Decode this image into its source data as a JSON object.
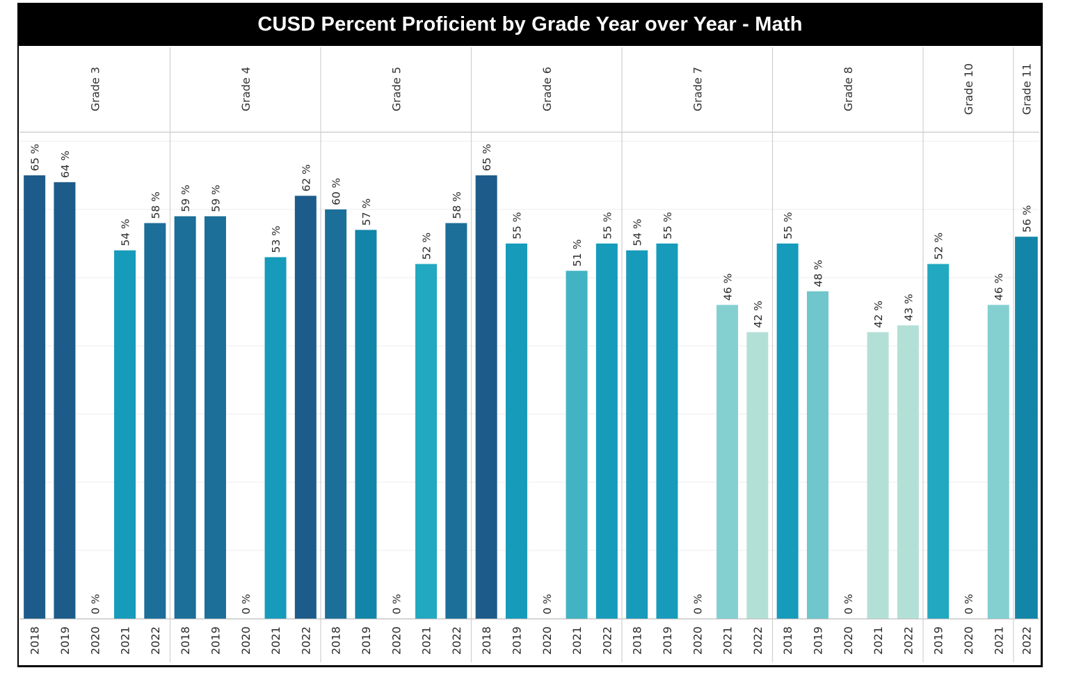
{
  "chart_data": {
    "type": "bar",
    "title": "CUSD Percent Proficient by Grade Year over Year -  Math",
    "xlabel": "",
    "ylabel": "",
    "ylim": [
      0,
      70
    ],
    "grid": true,
    "value_suffix": " %",
    "groups": [
      {
        "name": "Grade 3",
        "years": [
          "2018",
          "2019",
          "2020",
          "2021",
          "2022"
        ],
        "values": [
          65,
          64,
          0,
          54,
          58
        ]
      },
      {
        "name": "Grade 4",
        "years": [
          "2018",
          "2019",
          "2020",
          "2021",
          "2022"
        ],
        "values": [
          59,
          59,
          0,
          53,
          62
        ]
      },
      {
        "name": "Grade 5",
        "years": [
          "2018",
          "2019",
          "2020",
          "2021",
          "2022"
        ],
        "values": [
          60,
          57,
          0,
          52,
          58
        ]
      },
      {
        "name": "Grade 6",
        "years": [
          "2018",
          "2019",
          "2020",
          "2021",
          "2022"
        ],
        "values": [
          65,
          55,
          0,
          51,
          55
        ]
      },
      {
        "name": "Grade 7",
        "years": [
          "2018",
          "2019",
          "2020",
          "2021",
          "2022"
        ],
        "values": [
          54,
          55,
          0,
          46,
          42
        ]
      },
      {
        "name": "Grade 8",
        "years": [
          "2018",
          "2019",
          "2020",
          "2021",
          "2022"
        ],
        "values": [
          55,
          48,
          0,
          42,
          43
        ]
      },
      {
        "name": "Grade 10",
        "years": [
          "2019",
          "2020",
          "2021"
        ],
        "values": [
          52,
          0,
          46
        ]
      },
      {
        "name": "Grade 11",
        "years": [
          "2022"
        ],
        "values": [
          56
        ]
      }
    ],
    "color_scale": [
      {
        "min": 62,
        "color": "#1d5c8a"
      },
      {
        "min": 58,
        "color": "#1b6f99"
      },
      {
        "min": 56,
        "color": "#1385a8"
      },
      {
        "min": 53,
        "color": "#179bbb"
      },
      {
        "min": 52,
        "color": "#22a8c1"
      },
      {
        "min": 51,
        "color": "#42b3c3"
      },
      {
        "min": 48,
        "color": "#6fc6cc"
      },
      {
        "min": 46,
        "color": "#84d0d1"
      },
      {
        "min": 0,
        "color": "#b3e0d6"
      }
    ]
  }
}
